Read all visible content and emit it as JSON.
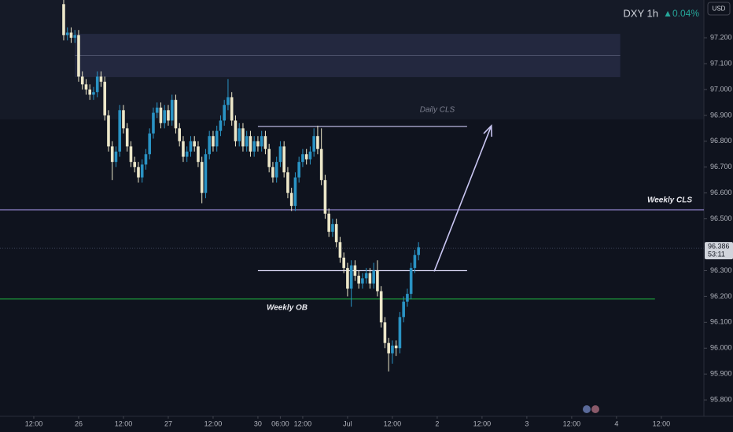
{
  "chart_data": {
    "type": "candlestick",
    "header": {
      "symbol": "DXY 1h",
      "change": "▲0.04%",
      "currency": "USD"
    },
    "last_price": {
      "value": 96.386,
      "label": "96.386"
    },
    "countdown": "53:11",
    "up_color": "#2a93c4",
    "down_color": "#ece7c9",
    "xlim": [
      -21.05,
      167.4
    ],
    "ylim": [
      95.767,
      97.346
    ],
    "xticks": [
      {
        "value": -12,
        "label": "12:00"
      },
      {
        "value": 0,
        "label": "26"
      },
      {
        "value": 12,
        "label": "12:00"
      },
      {
        "value": 24,
        "label": "27"
      },
      {
        "value": 36,
        "label": "12:00"
      },
      {
        "value": 48,
        "label": "30"
      },
      {
        "value": 54,
        "label": "06:00"
      },
      {
        "value": 60,
        "label": "12:00"
      },
      {
        "value": 72,
        "label": "Jul"
      },
      {
        "value": 84,
        "label": "12:00"
      },
      {
        "value": 96,
        "label": "2"
      },
      {
        "value": 108,
        "label": "12:00"
      },
      {
        "value": 120,
        "label": "3"
      },
      {
        "value": 132,
        "label": "12:00"
      },
      {
        "value": 144,
        "label": "4"
      },
      {
        "value": 156,
        "label": "12:00"
      }
    ],
    "yticks": [
      {
        "value": 97.2,
        "label": "97.200"
      },
      {
        "value": 97.1,
        "label": "97.100"
      },
      {
        "value": 97.0,
        "label": "97.000"
      },
      {
        "value": 96.9,
        "label": "96.900"
      },
      {
        "value": 96.8,
        "label": "96.800"
      },
      {
        "value": 96.7,
        "label": "96.700"
      },
      {
        "value": 96.6,
        "label": "96.600"
      },
      {
        "value": 96.5,
        "label": "96.500"
      },
      {
        "value": 96.3,
        "label": "96.300"
      },
      {
        "value": 96.2,
        "label": "96.200"
      },
      {
        "value": 96.1,
        "label": "96.100"
      },
      {
        "value": 96.0,
        "label": "96.000"
      },
      {
        "value": 95.9,
        "label": "95.900"
      },
      {
        "value": 95.8,
        "label": "95.800"
      }
    ],
    "x": [
      -4,
      -3,
      -2,
      -1,
      0,
      1,
      2,
      3,
      4,
      5,
      6,
      7,
      8,
      9,
      10,
      11,
      12,
      13,
      14,
      15,
      16,
      17,
      18,
      19,
      20,
      21,
      22,
      23,
      24,
      25,
      26,
      27,
      28,
      29,
      30,
      31,
      32,
      33,
      34,
      35,
      36,
      37,
      38,
      39,
      40,
      41,
      42,
      43,
      44,
      45,
      46,
      47,
      48,
      49,
      50,
      51,
      52,
      53,
      54,
      55,
      56,
      57,
      58,
      59,
      60,
      61,
      62,
      63,
      64,
      65,
      66,
      67,
      68,
      69,
      70,
      71,
      72,
      73,
      74,
      75,
      76,
      77,
      78,
      79,
      80,
      81,
      82,
      83,
      84,
      85,
      86,
      87,
      88,
      89,
      90,
      91
    ],
    "ohlc": [
      [
        97.33,
        97.35,
        97.19,
        97.21
      ],
      [
        97.21,
        97.24,
        97.19,
        97.22
      ],
      [
        97.22,
        97.24,
        97.18,
        97.2
      ],
      [
        97.2,
        97.23,
        97.18,
        97.21
      ],
      [
        97.21,
        97.23,
        97.03,
        97.05
      ],
      [
        97.05,
        97.07,
        97.0,
        97.02
      ],
      [
        97.02,
        97.04,
        96.98,
        97.0
      ],
      [
        97.0,
        97.02,
        96.96,
        96.98
      ],
      [
        96.98,
        97.01,
        96.96,
        96.99
      ],
      [
        96.99,
        97.07,
        96.97,
        97.05
      ],
      [
        97.05,
        97.07,
        97.01,
        97.03
      ],
      [
        97.03,
        97.05,
        96.88,
        96.9
      ],
      [
        96.9,
        96.92,
        96.76,
        96.78
      ],
      [
        96.78,
        96.8,
        96.65,
        96.72
      ],
      [
        96.72,
        96.78,
        96.7,
        96.76
      ],
      [
        96.76,
        96.94,
        96.74,
        96.92
      ],
      [
        96.92,
        96.94,
        96.83,
        96.85
      ],
      [
        96.85,
        96.87,
        96.76,
        96.78
      ],
      [
        96.78,
        96.8,
        96.7,
        96.72
      ],
      [
        96.72,
        96.74,
        96.68,
        96.7
      ],
      [
        96.7,
        96.72,
        96.64,
        96.66
      ],
      [
        96.66,
        96.73,
        96.64,
        96.71
      ],
      [
        96.71,
        96.77,
        96.69,
        96.75
      ],
      [
        96.75,
        96.85,
        96.73,
        96.83
      ],
      [
        96.83,
        96.93,
        96.81,
        96.91
      ],
      [
        96.91,
        96.95,
        96.89,
        96.93
      ],
      [
        96.93,
        96.95,
        96.85,
        96.87
      ],
      [
        96.87,
        96.94,
        96.85,
        96.92
      ],
      [
        96.92,
        96.94,
        96.86,
        96.88
      ],
      [
        96.88,
        96.98,
        96.86,
        96.96
      ],
      [
        96.96,
        96.98,
        96.83,
        96.85
      ],
      [
        96.85,
        96.87,
        96.78,
        96.8
      ],
      [
        96.8,
        96.82,
        96.72,
        96.74
      ],
      [
        96.74,
        96.78,
        96.72,
        96.76
      ],
      [
        96.76,
        96.82,
        96.74,
        96.8
      ],
      [
        96.8,
        96.82,
        96.76,
        96.78
      ],
      [
        96.78,
        96.8,
        96.7,
        96.72
      ],
      [
        96.72,
        96.74,
        96.56,
        96.6
      ],
      [
        96.6,
        96.77,
        96.58,
        96.75
      ],
      [
        96.75,
        96.84,
        96.73,
        96.82
      ],
      [
        96.82,
        96.84,
        96.76,
        96.78
      ],
      [
        96.78,
        96.86,
        96.76,
        96.84
      ],
      [
        96.84,
        96.9,
        96.82,
        96.88
      ],
      [
        96.88,
        96.96,
        96.86,
        96.94
      ],
      [
        96.94,
        97.04,
        96.92,
        96.97
      ],
      [
        96.97,
        96.99,
        96.86,
        96.88
      ],
      [
        96.88,
        96.9,
        96.78,
        96.8
      ],
      [
        96.8,
        96.87,
        96.78,
        96.85
      ],
      [
        96.85,
        96.87,
        96.76,
        96.78
      ],
      [
        96.78,
        96.84,
        96.76,
        96.82
      ],
      [
        96.82,
        96.84,
        96.74,
        96.76
      ],
      [
        96.76,
        96.82,
        96.74,
        96.8
      ],
      [
        96.8,
        96.82,
        96.76,
        96.78
      ],
      [
        96.78,
        96.84,
        96.76,
        96.82
      ],
      [
        96.82,
        96.84,
        96.75,
        96.77
      ],
      [
        96.77,
        96.79,
        96.68,
        96.7
      ],
      [
        96.7,
        96.72,
        96.64,
        96.66
      ],
      [
        96.66,
        96.74,
        96.64,
        96.72
      ],
      [
        96.72,
        96.8,
        96.7,
        96.78
      ],
      [
        96.78,
        96.8,
        96.66,
        96.68
      ],
      [
        96.68,
        96.7,
        96.58,
        96.6
      ],
      [
        96.6,
        96.62,
        96.53,
        96.55
      ],
      [
        96.55,
        96.68,
        96.53,
        96.66
      ],
      [
        96.66,
        96.74,
        96.64,
        96.72
      ],
      [
        96.72,
        96.77,
        96.7,
        96.75
      ],
      [
        96.75,
        96.77,
        96.71,
        96.73
      ],
      [
        96.73,
        96.78,
        96.71,
        96.76
      ],
      [
        96.76,
        96.85,
        96.74,
        96.82
      ],
      [
        96.82,
        96.86,
        96.75,
        96.77
      ],
      [
        96.77,
        96.85,
        96.63,
        96.65
      ],
      [
        96.65,
        96.67,
        96.5,
        96.52
      ],
      [
        96.52,
        96.54,
        96.43,
        96.45
      ],
      [
        96.45,
        96.5,
        96.43,
        96.48
      ],
      [
        96.48,
        96.5,
        96.39,
        96.41
      ],
      [
        96.41,
        96.43,
        96.33,
        96.35
      ],
      [
        96.35,
        96.37,
        96.29,
        96.31
      ],
      [
        96.31,
        96.33,
        96.2,
        96.23
      ],
      [
        96.23,
        96.34,
        96.16,
        96.32
      ],
      [
        96.32,
        96.34,
        96.26,
        96.28
      ],
      [
        96.28,
        96.3,
        96.23,
        96.25
      ],
      [
        96.25,
        96.29,
        96.23,
        96.27
      ],
      [
        96.27,
        96.31,
        96.25,
        96.29
      ],
      [
        96.29,
        96.31,
        96.23,
        96.25
      ],
      [
        96.25,
        96.33,
        96.23,
        96.3
      ],
      [
        96.3,
        96.34,
        96.2,
        96.22
      ],
      [
        96.22,
        96.24,
        96.08,
        96.1
      ],
      [
        96.1,
        96.12,
        96.0,
        96.02
      ],
      [
        96.02,
        96.04,
        95.91,
        95.98
      ],
      [
        95.98,
        96.03,
        95.94,
        96.01
      ],
      [
        96.01,
        96.03,
        95.97,
        96.0
      ],
      [
        96.0,
        96.14,
        95.98,
        96.12
      ],
      [
        96.12,
        96.2,
        96.1,
        96.18
      ],
      [
        96.18,
        96.23,
        96.16,
        96.21
      ],
      [
        96.21,
        96.33,
        96.19,
        96.31
      ],
      [
        96.31,
        96.38,
        96.29,
        96.36
      ],
      [
        96.36,
        96.41,
        96.34,
        96.39
      ]
    ],
    "zone": {
      "top": 97.215,
      "bottom": 97.048,
      "x": [
        -1,
        145
      ],
      "color": "#2a2f4a"
    },
    "lines": [
      {
        "label": "Weekly CLS",
        "value": 96.535,
        "color": "#a694e8"
      },
      {
        "label": "Weekly OB",
        "value": 96.19,
        "color": "#1fae3f",
        "x": [
          -21.05,
          154.3
        ]
      },
      {
        "label": "Daily CLS",
        "value": 96.857,
        "color": "#c9c6f2",
        "x": [
          48,
          104
        ]
      },
      {
        "value": 96.3,
        "color": "#d6d4f0",
        "x": [
          48,
          104
        ]
      }
    ],
    "arrow": {
      "from": [
        95.2,
        96.297
      ],
      "to": [
        110.5,
        96.86
      ],
      "color": "#c9c6f2"
    }
  }
}
